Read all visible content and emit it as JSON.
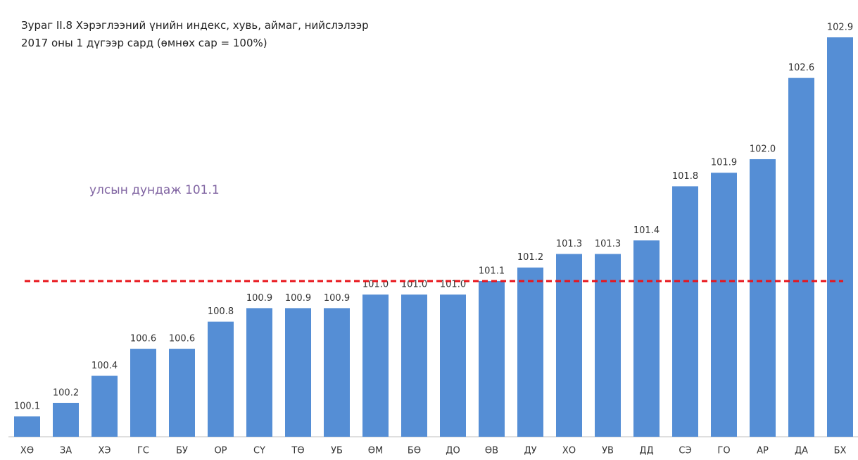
{
  "chart_data": {
    "type": "bar",
    "title": "Зураг II.8 Хэрэглээний үнийн индекс, хувь, аймаг, нийслэлээр",
    "subtitle": "2017 оны 1 дүгээр сард (өмнөх сар = 100%)",
    "categories": [
      "ХӨ",
      "ЗА",
      "ХЭ",
      "ГС",
      "БУ",
      "ОР",
      "СҮ",
      "ТӨ",
      "УБ",
      "ӨМ",
      "БӨ",
      "ДО",
      "ӨВ",
      "ДУ",
      "ХО",
      "УВ",
      "ДД",
      "СЭ",
      "ГО",
      "АР",
      "ДА",
      "БХ"
    ],
    "values": [
      100.1,
      100.2,
      100.4,
      100.6,
      100.6,
      100.8,
      100.9,
      100.9,
      100.9,
      101.0,
      101.0,
      101.0,
      101.1,
      101.2,
      101.3,
      101.3,
      101.4,
      101.8,
      101.9,
      102.0,
      102.6,
      102.9
    ],
    "value_labels": [
      "100.1",
      "100.2",
      "100.4",
      "100.6",
      "100.6",
      "100.8",
      "100.9",
      "100.9",
      "100.9",
      "101.0",
      "101.0",
      "101.0",
      "101.1",
      "101.2",
      "101.3",
      "101.3",
      "101.4",
      "101.8",
      "101.9",
      "102.0",
      "102.6",
      "102.9"
    ],
    "color": "#558ed5",
    "ylim": [
      99.95,
      102.9
    ],
    "reference_line": {
      "value": 101.1,
      "label": "улсын дундаж 101.1",
      "color": "#e8141b",
      "label_color": "#8064a2"
    }
  }
}
